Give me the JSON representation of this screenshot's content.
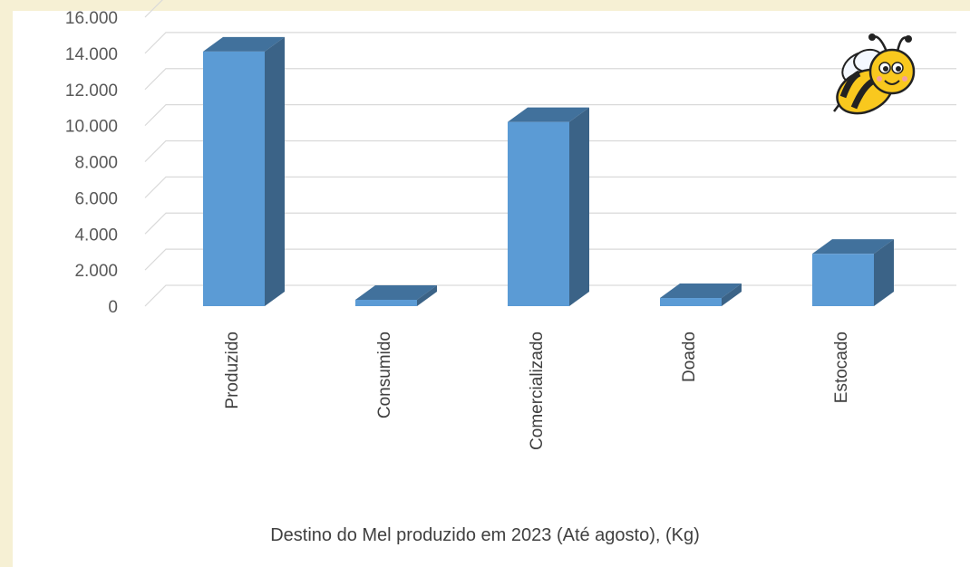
{
  "chart_data": {
    "type": "bar",
    "categories": [
      "Produzido",
      "Consumido",
      "Comercializado",
      "Doado",
      "Estocado"
    ],
    "values": [
      14100,
      350,
      10200,
      450,
      2900
    ],
    "ytick_labels": [
      "0",
      "2.000",
      "4.000",
      "6.000",
      "8.000",
      "10.000",
      "12.000",
      "14.000",
      "16.000"
    ],
    "ylim": [
      0,
      16000
    ],
    "xlabel": "Destino do Mel produzido em 2023 (Até agosto), (Kg)",
    "ylabel": "",
    "grid": true,
    "style": "3d-column",
    "colors": {
      "front": "#5b9bd5",
      "top": "#41719c",
      "side": "#3b6387",
      "grid": "#d9d9d9",
      "background": "#f6f0d4"
    }
  },
  "decoration": {
    "icon": "bee-icon"
  }
}
